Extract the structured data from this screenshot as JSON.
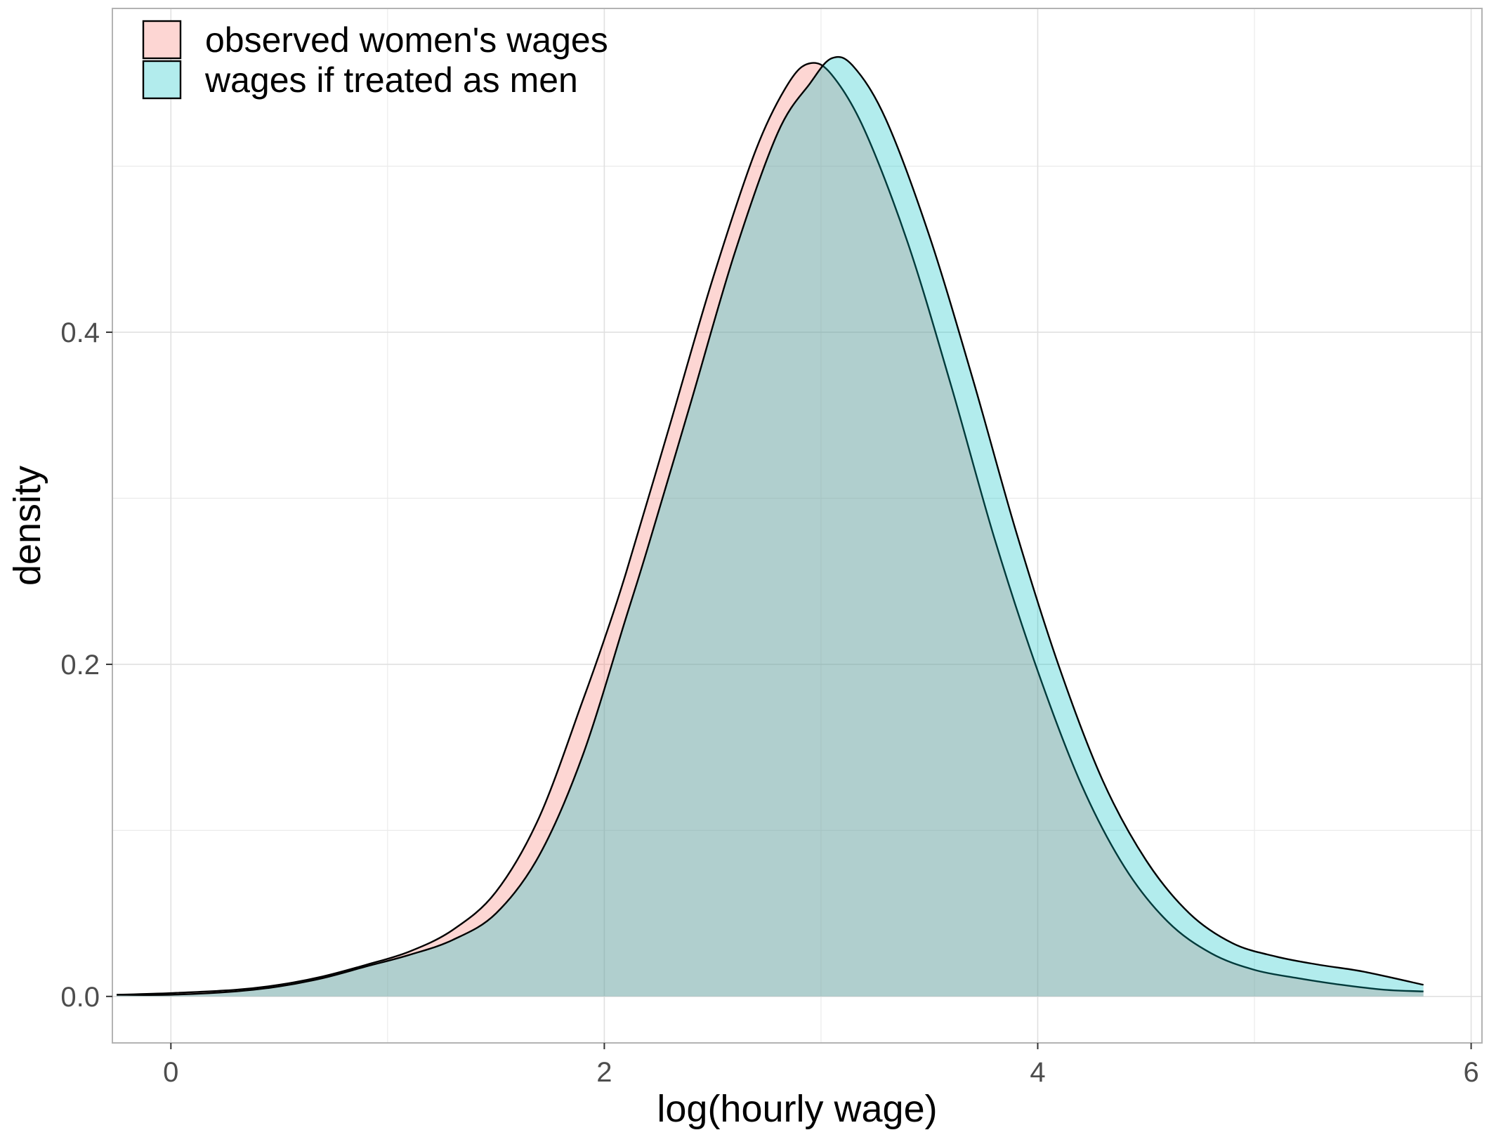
{
  "chart_data": {
    "type": "area",
    "title": "",
    "xlabel": "log(hourly wage)",
    "ylabel": "density",
    "xlim": [
      -0.27,
      6.05
    ],
    "ylim": [
      -0.028,
      0.595
    ],
    "x_ticks": [
      0,
      2,
      4,
      6
    ],
    "x_tick_labels": [
      "0",
      "2",
      "4",
      "6"
    ],
    "y_ticks": [
      0.0,
      0.2,
      0.4
    ],
    "y_tick_labels": [
      "0.0",
      "0.2",
      "0.4"
    ],
    "grid": true,
    "legend_position": "top-left",
    "series": [
      {
        "name": "observed women's wages",
        "color": "#F8766D",
        "fill_opacity": 0.3,
        "x": [
          -0.25,
          0.0,
          0.3,
          0.5,
          0.7,
          0.9,
          1.1,
          1.3,
          1.5,
          1.7,
          1.9,
          2.0,
          2.1,
          2.3,
          2.5,
          2.7,
          2.85,
          2.95,
          3.05,
          3.2,
          3.4,
          3.6,
          3.8,
          4.0,
          4.2,
          4.4,
          4.6,
          4.8,
          5.0,
          5.2,
          5.4,
          5.6,
          5.78
        ],
        "y": [
          0.001,
          0.002,
          0.004,
          0.007,
          0.012,
          0.019,
          0.027,
          0.04,
          0.063,
          0.108,
          0.178,
          0.215,
          0.255,
          0.343,
          0.432,
          0.51,
          0.55,
          0.562,
          0.555,
          0.522,
          0.454,
          0.368,
          0.276,
          0.196,
          0.128,
          0.078,
          0.045,
          0.026,
          0.016,
          0.011,
          0.007,
          0.004,
          0.003
        ]
      },
      {
        "name": "wages if treated as men",
        "color": "#00BFC4",
        "fill_opacity": 0.3,
        "x": [
          -0.25,
          0.0,
          0.3,
          0.5,
          0.7,
          0.9,
          1.1,
          1.3,
          1.5,
          1.7,
          1.9,
          2.1,
          2.2,
          2.4,
          2.6,
          2.8,
          2.95,
          3.05,
          3.15,
          3.3,
          3.5,
          3.7,
          3.9,
          4.1,
          4.3,
          4.5,
          4.7,
          4.9,
          5.1,
          5.3,
          5.5,
          5.78
        ],
        "y": [
          0.001,
          0.001,
          0.003,
          0.006,
          0.011,
          0.018,
          0.025,
          0.034,
          0.05,
          0.085,
          0.145,
          0.228,
          0.27,
          0.358,
          0.447,
          0.52,
          0.55,
          0.565,
          0.56,
          0.528,
          0.458,
          0.372,
          0.28,
          0.198,
          0.13,
          0.082,
          0.05,
          0.032,
          0.024,
          0.019,
          0.015,
          0.007
        ]
      }
    ]
  }
}
